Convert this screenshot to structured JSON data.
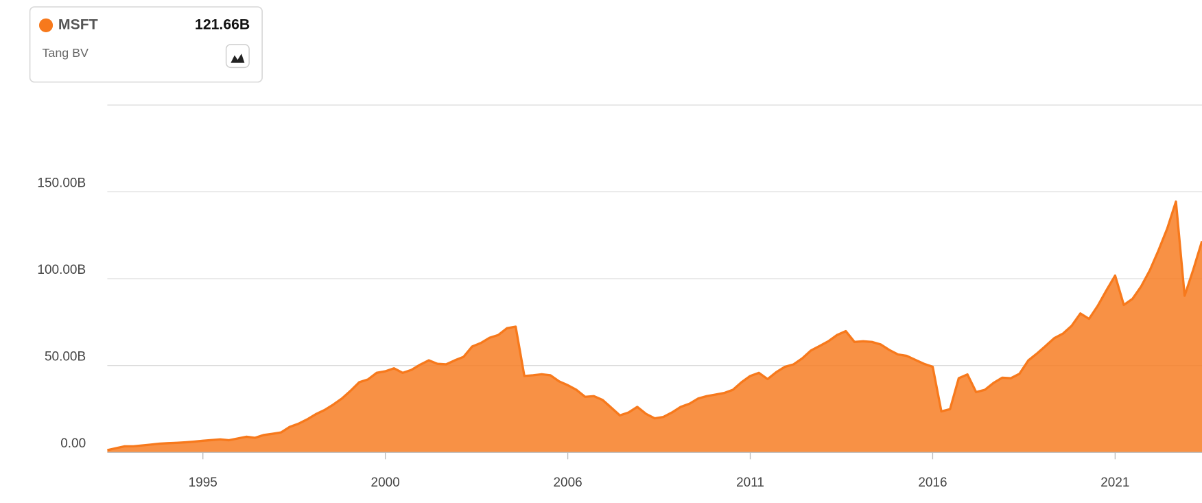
{
  "chart_data": {
    "type": "area",
    "series": [
      {
        "name": "MSFT",
        "legend_value": "121.66B",
        "subtitle": "Tang BV",
        "color": "#f7791c",
        "values": [
          1.3,
          2.4,
          3.5,
          3.5,
          4,
          4.5,
          5,
          5.3,
          5.5,
          5.8,
          6.2,
          6.7,
          7.1,
          7.5,
          7,
          8,
          9,
          8.4,
          10,
          10.7,
          11.5,
          14.7,
          16.5,
          19,
          22,
          24.4,
          27.5,
          31,
          35.5,
          40.4,
          42,
          45.8,
          46.7,
          48.4,
          45.8,
          47.5,
          50.5,
          53,
          51,
          50.7,
          53,
          55,
          61,
          63,
          66,
          67.6,
          71.5,
          72.4,
          44,
          44.4,
          45,
          44.4,
          40.9,
          38.7,
          36,
          32,
          32.4,
          30.2,
          25.8,
          21.3,
          23,
          26.2,
          22.2,
          19.6,
          20.4,
          23,
          26.2,
          28,
          31,
          32.4,
          33.3,
          34.2,
          36,
          40.4,
          44,
          45.8,
          42.2,
          46.2,
          49.3,
          50.7,
          54.2,
          58.7,
          61.3,
          64,
          67.6,
          69.8,
          63.6,
          64,
          63.6,
          62.2,
          59,
          56.4,
          55.6,
          53.3,
          51,
          49.3,
          23.6,
          24.9,
          42.7,
          44.9,
          34.7,
          36,
          40,
          43,
          42.7,
          45.3,
          52.9,
          56.9,
          61.3,
          65.8,
          68.4,
          72.9,
          80,
          76.9,
          84.4,
          93.3,
          101.8,
          84.9,
          88.4,
          95.6,
          104.9,
          116.4,
          128.9,
          144.4,
          90.2,
          105.3,
          121.66
        ]
      }
    ],
    "categories": [
      null,
      null,
      null,
      null,
      null,
      null,
      null,
      null,
      null,
      null,
      null,
      "1995",
      null,
      null,
      null,
      null,
      null,
      null,
      null,
      null,
      null,
      null,
      null,
      null,
      null,
      null,
      null,
      null,
      null,
      null,
      null,
      null,
      "2000",
      null,
      null,
      null,
      null,
      null,
      null,
      null,
      null,
      null,
      null,
      null,
      null,
      null,
      null,
      null,
      null,
      null,
      null,
      null,
      null,
      "2006",
      null,
      null,
      null,
      null,
      null,
      null,
      null,
      null,
      null,
      null,
      null,
      null,
      null,
      null,
      null,
      null,
      null,
      null,
      null,
      null,
      "2011",
      null,
      null,
      null,
      null,
      null,
      null,
      null,
      null,
      null,
      null,
      null,
      null,
      null,
      null,
      null,
      null,
      null,
      null,
      null,
      null,
      "2016",
      null,
      null,
      null,
      null,
      null,
      null,
      null,
      null,
      null,
      null,
      null,
      null,
      null,
      null,
      null,
      null,
      null,
      null,
      null,
      null,
      "2021",
      null,
      null,
      null,
      null,
      null,
      null,
      null,
      null,
      null,
      null
    ],
    "ylim": [
      0,
      200
    ],
    "yticks": [
      {
        "value": 0,
        "label": "0.00"
      },
      {
        "value": 50,
        "label": "50.00B"
      },
      {
        "value": 100,
        "label": "100.00B"
      },
      {
        "value": 150,
        "label": "150.00B"
      }
    ],
    "grid": true
  }
}
